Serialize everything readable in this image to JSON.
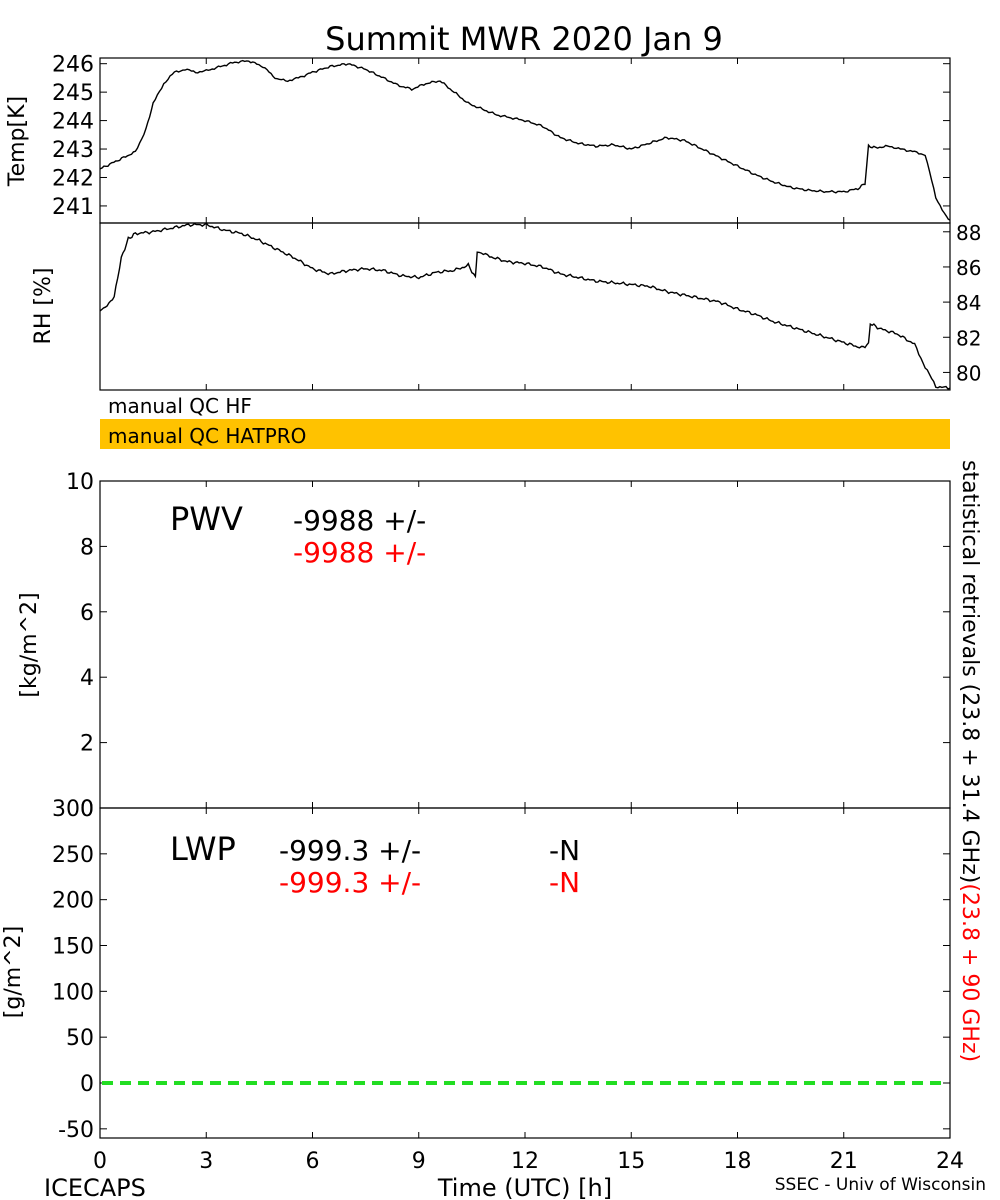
{
  "title": "Summit MWR 2020 Jan  9",
  "footer": {
    "left": "ICECAPS",
    "right": "SSEC - Univ of Wisconsin"
  },
  "colors": {
    "ink": "#000000",
    "red": "#ff0000",
    "qc_bar": "#ffc200",
    "zero_line": "#22dd22"
  },
  "qc": {
    "hf_label": "manual  QC  HF",
    "hatpro_label": "manual  QC  HATPRO"
  },
  "side_label": {
    "black": "statistical  retrievals  (23.8  +  31.4  GHz)",
    "red": "(23.8  +  90  GHz)"
  },
  "chart_data": [
    {
      "type": "line",
      "ylabel": "Temp[K]",
      "xlim": [
        0,
        24
      ],
      "ylim": [
        240.4,
        246.2
      ],
      "yticks": [
        241,
        242,
        243,
        244,
        245,
        246
      ],
      "series": [
        {
          "x": [
            0,
            0.5,
            1.0,
            1.3,
            1.5,
            1.8,
            2.1,
            2.4,
            2.7,
            3.0,
            3.4,
            3.8,
            4.2,
            4.6,
            5.0,
            5.3,
            5.6,
            6.0,
            6.5,
            7.0,
            7.5,
            8.0,
            8.4,
            8.8,
            9.2,
            9.6,
            10.0,
            10.4,
            10.8,
            11.2,
            11.6,
            12.0,
            12.5,
            13.0,
            13.5,
            14.0,
            14.5,
            15.0,
            15.5,
            16.0,
            16.5,
            17.0,
            17.5,
            18.0,
            18.5,
            19.0,
            19.5,
            20.0,
            20.5,
            21.0,
            21.4,
            21.6,
            21.7,
            21.9,
            22.3,
            22.6,
            23.0,
            23.3,
            23.6,
            23.9,
            24.0
          ],
          "y": [
            242.3,
            242.6,
            242.9,
            243.7,
            244.6,
            245.3,
            245.7,
            245.8,
            245.7,
            245.75,
            245.9,
            246.05,
            246.1,
            245.9,
            245.45,
            245.4,
            245.5,
            245.7,
            245.9,
            246.0,
            245.8,
            245.5,
            245.25,
            245.1,
            245.3,
            245.4,
            245.0,
            244.6,
            244.4,
            244.2,
            244.1,
            244.0,
            243.8,
            243.4,
            243.2,
            243.1,
            243.15,
            243.0,
            243.2,
            243.4,
            243.3,
            243.0,
            242.7,
            242.4,
            242.1,
            241.85,
            241.65,
            241.55,
            241.5,
            241.5,
            241.6,
            241.8,
            243.1,
            243.05,
            243.1,
            243.0,
            242.9,
            242.8,
            241.3,
            240.6,
            240.5
          ]
        }
      ]
    },
    {
      "type": "line",
      "ylabel": "RH [%]",
      "xlim": [
        0,
        24
      ],
      "ylim": [
        79,
        88.5
      ],
      "yticks": [
        80,
        82,
        84,
        86,
        88
      ],
      "series": [
        {
          "x": [
            0,
            0.2,
            0.4,
            0.6,
            0.8,
            1.0,
            1.5,
            2.0,
            2.5,
            3.0,
            3.5,
            4.0,
            4.5,
            5.0,
            5.5,
            6.0,
            6.5,
            7.0,
            7.5,
            8.0,
            8.5,
            9.0,
            9.5,
            10.0,
            10.4,
            10.6,
            10.65,
            11.0,
            11.5,
            12.0,
            12.5,
            13.0,
            13.5,
            14.0,
            14.5,
            15.0,
            15.5,
            16.0,
            16.5,
            17.0,
            17.5,
            18.0,
            18.5,
            19.0,
            19.5,
            20.0,
            20.5,
            21.0,
            21.5,
            21.7,
            21.75,
            22.0,
            22.5,
            23.0,
            23.3,
            23.6,
            24.0
          ],
          "y": [
            83.5,
            83.8,
            84.3,
            86.5,
            87.6,
            87.9,
            88.0,
            88.2,
            88.4,
            88.4,
            88.1,
            87.9,
            87.5,
            87.0,
            86.5,
            85.9,
            85.6,
            85.8,
            85.9,
            85.8,
            85.5,
            85.4,
            85.7,
            85.8,
            86.1,
            85.4,
            86.9,
            86.6,
            86.3,
            86.2,
            86.0,
            85.6,
            85.4,
            85.2,
            85.1,
            85.0,
            84.9,
            84.6,
            84.4,
            84.2,
            84.0,
            83.6,
            83.3,
            82.9,
            82.6,
            82.3,
            82.0,
            81.7,
            81.4,
            81.6,
            82.8,
            82.5,
            82.2,
            81.6,
            80.3,
            79.2,
            79.1
          ]
        }
      ]
    },
    {
      "type": "line",
      "ylabel": "[kg/m^2]",
      "xlim": [
        0,
        24
      ],
      "ylim": [
        0,
        10
      ],
      "yticks": [
        0,
        2,
        4,
        6,
        8,
        10
      ],
      "annotation": {
        "label": "PWV",
        "black": "-9988 +/-",
        "red": "-9988 +/-"
      },
      "series": []
    },
    {
      "type": "line",
      "ylabel": "[g/m^2]",
      "xlabel": "Time (UTC) [h]",
      "xlim": [
        0,
        24
      ],
      "xticks": [
        0,
        3,
        6,
        9,
        12,
        15,
        18,
        21,
        24
      ],
      "ylim": [
        -60,
        300
      ],
      "yticks": [
        -50,
        0,
        50,
        100,
        150,
        200,
        250,
        300
      ],
      "annotation": {
        "label": "LWP",
        "black": "-999.3 +/-",
        "black_n": "-N",
        "red": "-999.3 +/-",
        "red_n": "-N"
      },
      "reference_line": {
        "y": 0,
        "style": "dashed",
        "color": "#22dd22"
      },
      "series": []
    }
  ]
}
